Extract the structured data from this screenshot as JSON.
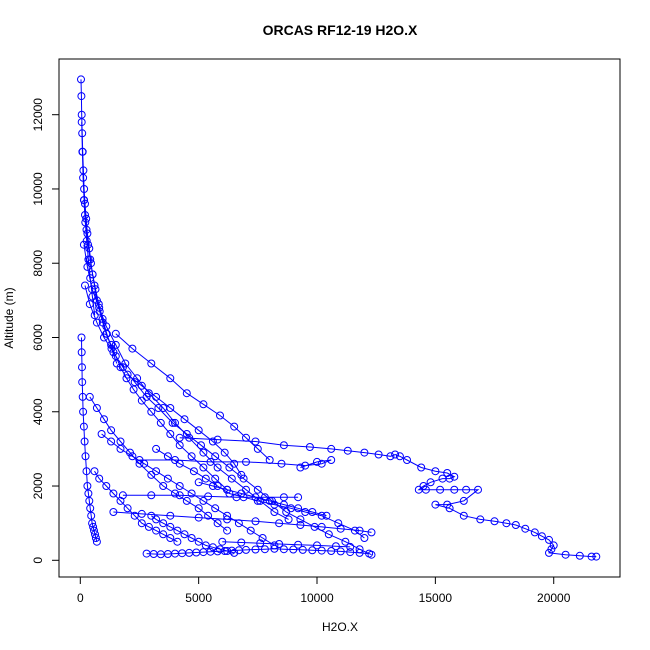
{
  "chart_data": {
    "type": "scatter",
    "title": "ORCAS RF12-19 H2O.X",
    "xlabel": "H2O.X",
    "ylabel": "Altitude (m)",
    "xlim": [
      -900,
      22800
    ],
    "ylim": [
      -450,
      13500
    ],
    "x_ticks": [
      0,
      5000,
      10000,
      15000,
      20000
    ],
    "y_ticks": [
      0,
      2000,
      4000,
      6000,
      8000,
      10000,
      12000
    ],
    "x_tick_labels": [
      "0",
      "5000",
      "10000",
      "15000",
      "20000"
    ],
    "y_tick_labels": [
      "0",
      "2000",
      "4000",
      "6000",
      "8000",
      "10000",
      "12000"
    ],
    "grid": false,
    "legend": "none",
    "marker": "open-circle",
    "connected": true,
    "color": "#0000ff",
    "series": [
      {
        "points_note": "",
        "x": [
          30,
          45,
          60,
          80,
          100,
          130,
          160,
          200,
          250,
          300,
          380,
          450,
          520,
          600,
          700,
          820,
          950,
          1100,
          1300,
          1500,
          1700,
          1950,
          2250,
          2600,
          3000,
          3400,
          3800,
          4200,
          4700,
          5200,
          5700,
          6200
        ],
        "y": [
          12950,
          12500,
          12000,
          11500,
          11000,
          10500,
          10000,
          9600,
          9200,
          8800,
          8400,
          8000,
          7700,
          7400,
          7000,
          6700,
          6400,
          6100,
          5800,
          5500,
          5200,
          4900,
          4600,
          4300,
          4000,
          3700,
          3400,
          3100,
          2800,
          2500,
          2200,
          1900
        ]
      },
      {
        "x": [
          150,
          300,
          500,
          800,
          1100,
          1500,
          1900,
          2400,
          2900,
          3500,
          4000,
          4600,
          5200,
          5800,
          6400,
          7000,
          7600,
          8200,
          8800
        ],
        "y": [
          8500,
          7900,
          7300,
          6800,
          6300,
          5800,
          5300,
          4900,
          4500,
          4100,
          3700,
          3300,
          2900,
          2500,
          2200,
          1900,
          1600,
          1300,
          1100
        ]
      },
      {
        "x": [
          200,
          400,
          700,
          1000,
          1400,
          1800,
          2300,
          2800,
          3300,
          3900,
          4500,
          5100,
          5700,
          6300,
          6900,
          7500,
          8100,
          8700,
          9300,
          9900,
          10500,
          11200,
          11800,
          12300
        ],
        "y": [
          7400,
          6900,
          6400,
          6000,
          5600,
          5200,
          4800,
          4400,
          4100,
          3700,
          3400,
          3100,
          2800,
          2500,
          2200,
          1900,
          1600,
          1300,
          1100,
          900,
          700,
          500,
          300,
          150
        ]
      },
      {
        "x": [
          1500,
          2200,
          3000,
          3800,
          4500,
          5200,
          5900,
          6500,
          7000,
          7500,
          8000
        ],
        "y": [
          6100,
          5700,
          5300,
          4900,
          4500,
          4200,
          3900,
          3600,
          3300,
          3000,
          2700
        ]
      },
      {
        "x": [
          2000,
          2600,
          3200,
          3800,
          4400,
          5000,
          5600,
          6100,
          6500,
          6800
        ],
        "y": [
          5000,
          4700,
          4400,
          4100,
          3800,
          3500,
          3200,
          2900,
          2600,
          2300
        ]
      },
      {
        "x": [
          400,
          700,
          1000,
          1300,
          1700,
          2100,
          2500,
          3000,
          3500,
          4000,
          4500,
          5000,
          5400,
          5800,
          6200
        ],
        "y": [
          4400,
          4100,
          3800,
          3500,
          3200,
          2900,
          2600,
          2300,
          2000,
          1800,
          1600,
          1400,
          1200,
          1000,
          800
        ]
      },
      {
        "x": [
          3200,
          3700,
          4200,
          4800,
          5300,
          5800,
          6300,
          6900,
          7500,
          8200,
          8900,
          9500,
          10200,
          10900,
          11600,
          12000
        ],
        "y": [
          3000,
          2800,
          2600,
          2400,
          2200,
          2000,
          1800,
          1700,
          1600,
          1500,
          1400,
          1300,
          1200,
          1000,
          800,
          600
        ]
      },
      {
        "x": [
          4200,
          5800,
          7400,
          8600,
          9700,
          10600,
          11300,
          12000,
          12600,
          13100,
          13300,
          13500,
          13800,
          14400,
          15000,
          15500,
          15800,
          15600,
          15300,
          14800,
          14500,
          14300,
          14600,
          15200,
          15800,
          16300,
          16800,
          16200,
          15500,
          15000,
          15600,
          16200,
          16900,
          17500,
          18000,
          18400,
          18800,
          19200,
          19500,
          19800,
          20000,
          19900,
          19800,
          20500,
          21100,
          21600,
          21800
        ],
        "y": [
          3300,
          3250,
          3200,
          3100,
          3050,
          3000,
          2950,
          2900,
          2850,
          2800,
          2850,
          2800,
          2700,
          2500,
          2400,
          2350,
          2250,
          2200,
          2200,
          2100,
          2000,
          1900,
          1900,
          1900,
          1900,
          1900,
          1900,
          1600,
          1500,
          1500,
          1400,
          1200,
          1100,
          1050,
          1000,
          950,
          850,
          750,
          650,
          550,
          400,
          300,
          200,
          150,
          120,
          100,
          100
        ]
      },
      {
        "x": [
          2500,
          4000,
          5500,
          7000,
          8500,
          9500,
          10200,
          10600,
          10000,
          9300
        ],
        "y": [
          2700,
          2700,
          2650,
          2650,
          2600,
          2550,
          2600,
          2700,
          2650,
          2500
        ]
      },
      {
        "x": [
          1800,
          3000,
          4200,
          5400,
          6600,
          7800,
          8600,
          9200
        ],
        "y": [
          1750,
          1750,
          1750,
          1720,
          1700,
          1700,
          1700,
          1700
        ]
      },
      {
        "x": [
          1400,
          2600,
          3800,
          5000,
          6200,
          7400,
          8400,
          9300,
          10200,
          11000,
          11800,
          12300
        ],
        "y": [
          1300,
          1250,
          1200,
          1150,
          1100,
          1050,
          1000,
          950,
          900,
          850,
          800,
          750
        ]
      },
      {
        "x": [
          2800,
          3100,
          3400,
          3700,
          4000,
          4300,
          4600,
          4900,
          5200,
          5500,
          5800,
          6100,
          6400,
          6700,
          7000,
          7400,
          7800,
          8200,
          8600,
          9000,
          9400,
          9800,
          10200,
          10600,
          11000,
          11400,
          11800,
          12200
        ],
        "y": [
          180,
          170,
          160,
          170,
          180,
          190,
          200,
          210,
          220,
          230,
          240,
          250,
          260,
          270,
          280,
          290,
          300,
          310,
          300,
          290,
          280,
          270,
          260,
          250,
          240,
          220,
          200,
          180
        ]
      },
      {
        "x": [
          3000,
          3200,
          3500,
          3800,
          4100,
          4400,
          4700,
          5000,
          5300,
          5600,
          5900,
          6200,
          6500
        ],
        "y": [
          1200,
          1100,
          1000,
          900,
          800,
          700,
          600,
          500,
          400,
          350,
          300,
          250,
          200
        ]
      },
      {
        "x": [
          600,
          800,
          1100,
          1400,
          1700,
          2000,
          2300,
          2600,
          2900,
          3200,
          3500,
          3800,
          4100
        ],
        "y": [
          2400,
          2200,
          2000,
          1800,
          1600,
          1400,
          1200,
          1000,
          900,
          800,
          700,
          600,
          500
        ]
      },
      {
        "x": [
          900,
          1300,
          1700,
          2200,
          2700,
          3200,
          3700,
          4200,
          4700,
          5200,
          5700,
          6200,
          6700,
          7200,
          7700,
          8200
        ],
        "y": [
          3400,
          3200,
          3000,
          2800,
          2600,
          2400,
          2200,
          2000,
          1800,
          1600,
          1400,
          1200,
          1000,
          800,
          600,
          400
        ]
      },
      {
        "x": [
          150,
          200,
          260,
          330,
          420,
          520,
          640,
          780,
          940,
          1120,
          1320,
          1540
        ],
        "y": [
          9700,
          9300,
          8900,
          8500,
          8100,
          7700,
          7300,
          6900,
          6500,
          6100,
          5700,
          5300
        ]
      },
      {
        "x": [
          60,
          90,
          120,
          160,
          210,
          270,
          340,
          420,
          510,
          610
        ],
        "y": [
          11800,
          11000,
          10300,
          9700,
          9100,
          8600,
          8100,
          7600,
          7100,
          6600
        ]
      },
      {
        "x": [
          50,
          60,
          70,
          80,
          100,
          120,
          150,
          180,
          220,
          260,
          300,
          340,
          380,
          420,
          460,
          500,
          540,
          580,
          620,
          660,
          700
        ],
        "y": [
          6000,
          5600,
          5200,
          4800,
          4400,
          4000,
          3600,
          3200,
          2800,
          2400,
          2000,
          1800,
          1600,
          1400,
          1200,
          1000,
          900,
          800,
          700,
          600,
          500
        ]
      },
      {
        "x": [
          5000,
          5600,
          6200,
          6800,
          7400,
          8000,
          8600,
          9200,
          9800,
          10400
        ],
        "y": [
          2100,
          2000,
          1900,
          1800,
          1700,
          1600,
          1500,
          1400,
          1300,
          1200
        ]
      },
      {
        "x": [
          6000,
          6800,
          7600,
          8400,
          9200,
          10000,
          10800,
          11400
        ],
        "y": [
          500,
          480,
          460,
          440,
          420,
          400,
          380,
          360
        ]
      }
    ]
  }
}
